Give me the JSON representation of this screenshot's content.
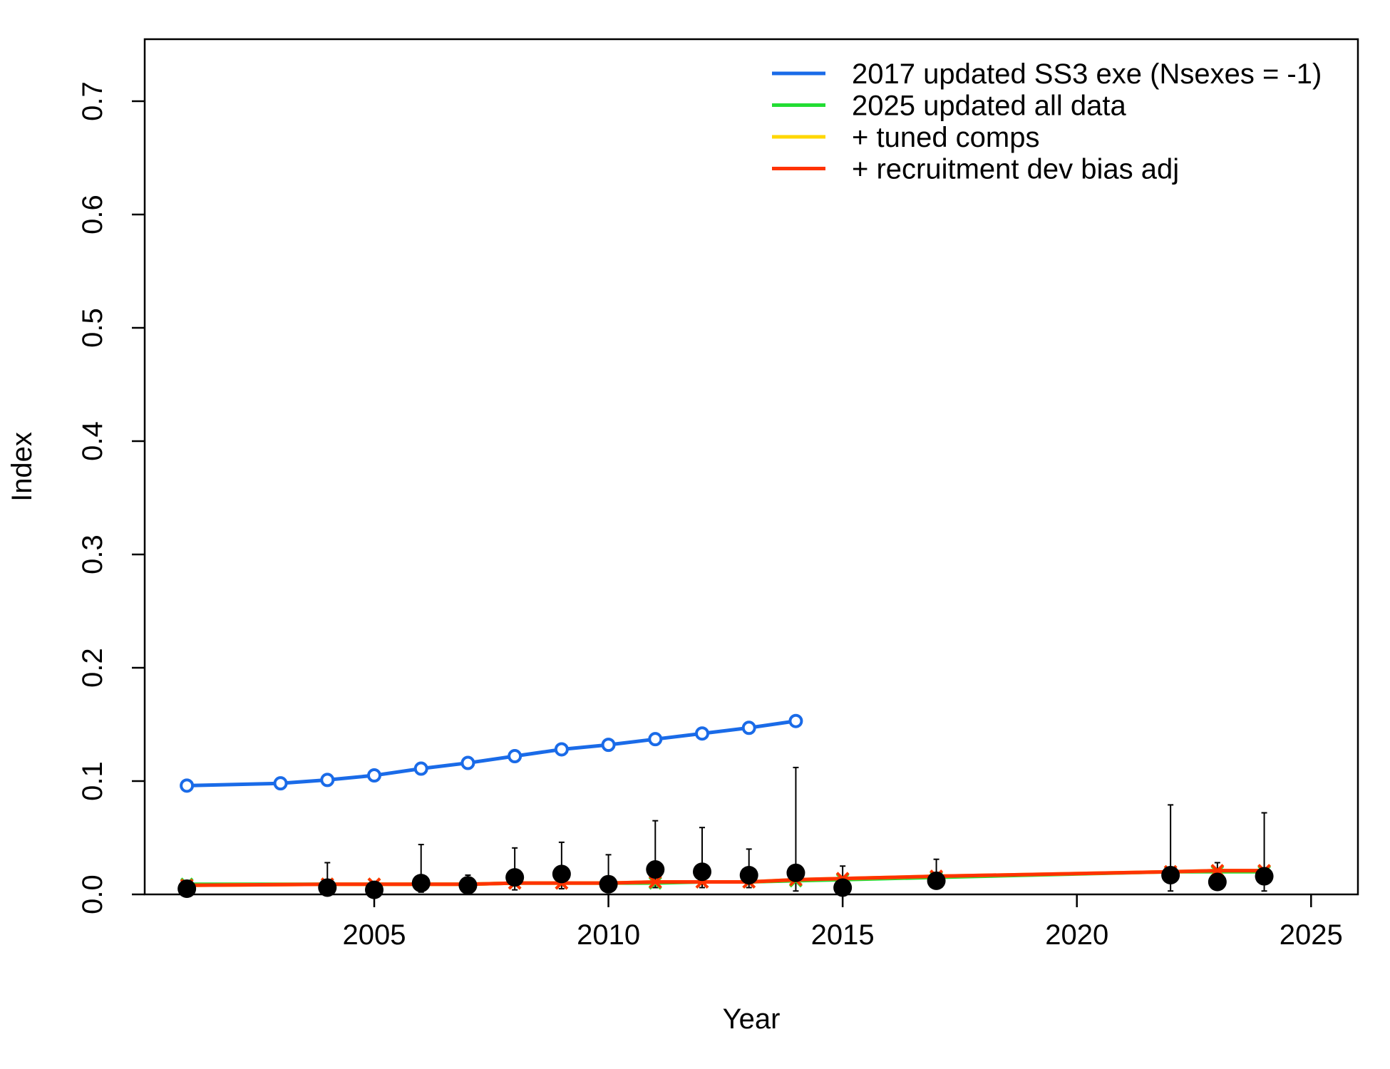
{
  "chart_data": {
    "type": "line",
    "xlabel": "Year",
    "ylabel": "Index",
    "xlim": [
      2000.1,
      2026
    ],
    "ylim": [
      0,
      0.75
    ],
    "x_ticks": [
      2005,
      2010,
      2015,
      2020,
      2025
    ],
    "y_ticks": [
      0.0,
      0.1,
      0.2,
      0.3,
      0.4,
      0.5,
      0.6,
      0.7
    ],
    "x_tick_labels": [
      "2005",
      "2010",
      "2015",
      "2020",
      "2025"
    ],
    "y_tick_labels": [
      "0.0",
      "0.1",
      "0.2",
      "0.3",
      "0.4",
      "0.5",
      "0.6",
      "0.7"
    ],
    "legend_position": "top-right",
    "series": [
      {
        "name": "2017 updated SS3 exe (Nsexes = -1)",
        "color": "#1a6be8",
        "marker": "open-circle",
        "x": [
          2001,
          2003,
          2004,
          2005,
          2006,
          2007,
          2008,
          2009,
          2010,
          2011,
          2012,
          2013,
          2014
        ],
        "y": [
          0.096,
          0.098,
          0.101,
          0.105,
          0.111,
          0.116,
          0.122,
          0.128,
          0.132,
          0.137,
          0.142,
          0.147,
          0.153
        ]
      },
      {
        "name": "2025 updated all data",
        "color": "#22dd33",
        "marker": "x",
        "x": [
          2001,
          2004,
          2005,
          2006,
          2007,
          2008,
          2009,
          2010,
          2011,
          2012,
          2013,
          2014,
          2015,
          2017,
          2022,
          2023,
          2024
        ],
        "y": [
          0.009,
          0.009,
          0.009,
          0.009,
          0.009,
          0.01,
          0.01,
          0.01,
          0.01,
          0.011,
          0.011,
          0.012,
          0.013,
          0.015,
          0.02,
          0.02,
          0.02
        ]
      },
      {
        "name": "+ tuned comps",
        "color": "#ffd700",
        "marker": "x",
        "x": [
          2001,
          2004,
          2005,
          2006,
          2007,
          2008,
          2009,
          2010,
          2011,
          2012,
          2013,
          2014,
          2015,
          2017,
          2022,
          2023,
          2024
        ],
        "y": [
          0.008,
          0.009,
          0.009,
          0.009,
          0.009,
          0.01,
          0.01,
          0.01,
          0.011,
          0.011,
          0.011,
          0.013,
          0.014,
          0.016,
          0.02,
          0.021,
          0.021
        ]
      },
      {
        "name": "+ recruitment dev bias adj",
        "color": "#ff3300",
        "marker": "x",
        "x": [
          2001,
          2004,
          2005,
          2006,
          2007,
          2008,
          2009,
          2010,
          2011,
          2012,
          2013,
          2014,
          2015,
          2017,
          2022,
          2023,
          2024
        ],
        "y": [
          0.008,
          0.009,
          0.009,
          0.009,
          0.009,
          0.01,
          0.01,
          0.01,
          0.011,
          0.011,
          0.011,
          0.013,
          0.014,
          0.016,
          0.02,
          0.021,
          0.021
        ]
      }
    ],
    "observed": {
      "marker": "filled-circle",
      "color": "#000000",
      "x": [
        2001,
        2004,
        2005,
        2006,
        2007,
        2008,
        2009,
        2010,
        2011,
        2012,
        2013,
        2014,
        2015,
        2017,
        2022,
        2023,
        2024
      ],
      "y": [
        0.005,
        0.006,
        0.004,
        0.01,
        0.008,
        0.015,
        0.018,
        0.009,
        0.022,
        0.02,
        0.017,
        0.019,
        0.006,
        0.012,
        0.017,
        0.011,
        0.016
      ],
      "lower": [
        0.001,
        0.001,
        0.001,
        0.002,
        0.003,
        0.004,
        0.005,
        0.002,
        0.006,
        0.006,
        0.006,
        0.003,
        0.001,
        0.005,
        0.003,
        0.004,
        0.003
      ],
      "upper": [
        0.008,
        0.028,
        0.01,
        0.044,
        0.017,
        0.041,
        0.046,
        0.035,
        0.065,
        0.059,
        0.04,
        0.112,
        0.025,
        0.031,
        0.079,
        0.028,
        0.072
      ]
    }
  }
}
